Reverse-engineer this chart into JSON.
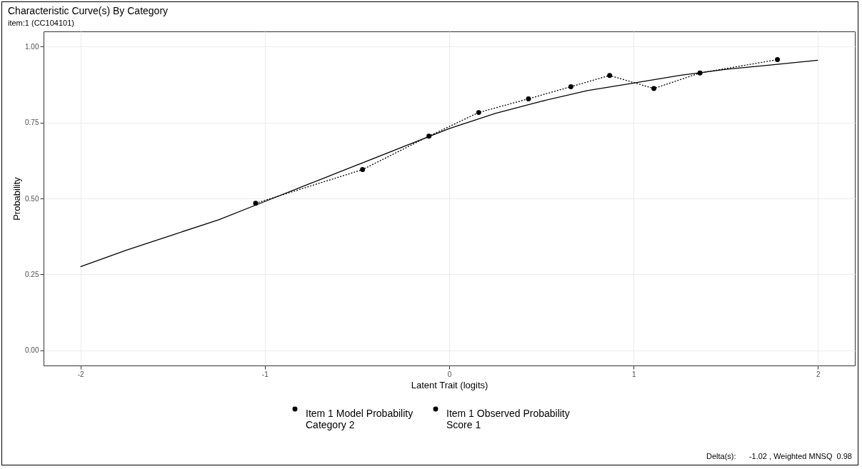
{
  "chart_data": {
    "type": "line",
    "title": "Characteristic Curve(s) By Category",
    "subtitle": "item:1 (CC104101)",
    "xlabel": "Latent Trait (logits)",
    "ylabel": "Probability",
    "xlim": [
      -2.2,
      2.2
    ],
    "xticks": [
      -2,
      -1,
      0,
      1,
      2
    ],
    "ylim": [
      -0.05,
      1.05
    ],
    "yticks": [
      {
        "value": 0,
        "label": "0.00"
      },
      {
        "value": 0.25,
        "label": "0.25"
      },
      {
        "value": 0.5,
        "label": "0.50"
      },
      {
        "value": 0.75,
        "label": "0.75"
      },
      {
        "value": 1,
        "label": "1.00"
      }
    ],
    "grid": true,
    "legend": "bottom",
    "series": [
      {
        "name": "Item 1 Model Probability Category 2",
        "color": "#000000",
        "line_style": "solid",
        "marker": "none",
        "x": [
          -2,
          -1.75,
          -1.5,
          -1.25,
          -1,
          -0.75,
          -0.5,
          -0.25,
          0,
          0.25,
          0.5,
          0.75,
          1,
          1.25,
          1.5,
          1.75,
          2
        ],
        "values": [
          0.275,
          0.33,
          0.38,
          0.43,
          0.49,
          0.55,
          0.61,
          0.67,
          0.73,
          0.78,
          0.82,
          0.855,
          0.88,
          0.905,
          0.925,
          0.94,
          0.955
        ]
      },
      {
        "name": "Item 1 Observed Probability Score 1",
        "color": "#000000",
        "line_style": "dotted",
        "marker": "circle",
        "x": [
          -1.05,
          -0.47,
          -0.11,
          0.16,
          0.43,
          0.66,
          0.87,
          1.11,
          1.36,
          1.78
        ],
        "values": [
          0.484,
          0.595,
          0.705,
          0.783,
          0.828,
          0.868,
          0.905,
          0.862,
          0.913,
          0.957
        ]
      }
    ],
    "annotations": [
      "Delta(s):      -1.02 , Weighted MNSQ  0.98"
    ]
  }
}
